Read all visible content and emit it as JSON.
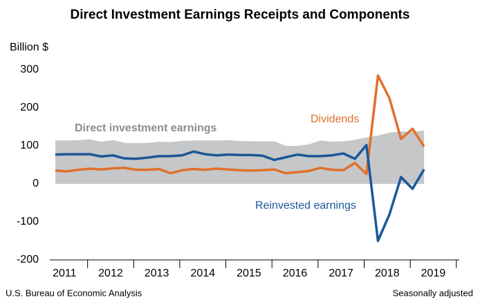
{
  "chart_data": {
    "type": "line",
    "title": "Direct Investment Earnings Receipts and Components",
    "y_label": "Billion $",
    "source": "U.S. Bureau of Economic Analysis",
    "note": "Seasonally adjusted",
    "categories": [
      null,
      null,
      null,
      null,
      null,
      null,
      null,
      null,
      null,
      null,
      null,
      null,
      null,
      null,
      null,
      null,
      null,
      null,
      null,
      null,
      null,
      null,
      null,
      null,
      null,
      null,
      null,
      null,
      null,
      null,
      null,
      null,
      null
    ],
    "x_groups": [
      "2011",
      "2012",
      "2013",
      "2014",
      "2015",
      "2016",
      "2017",
      "2018",
      "2019"
    ],
    "ylim": [
      -200,
      300
    ],
    "yticks": [
      -200,
      -100,
      0,
      100,
      200,
      300
    ],
    "grid": false,
    "series": [
      {
        "name": "Direct investment earnings",
        "kind": "area",
        "color": "#c5c7c9",
        "label_color": "#8c8c8c",
        "values": [
          114,
          114,
          115,
          117,
          111,
          115,
          108,
          107,
          108,
          111,
          110,
          113,
          114,
          114,
          114,
          115,
          113,
          112,
          112,
          112,
          100,
          100,
          104,
          114,
          111,
          112,
          116,
          122,
          127,
          135,
          138,
          137,
          140
        ]
      },
      {
        "name": "Dividends",
        "kind": "line",
        "color": "#e0702a",
        "values": [
          35,
          33,
          37,
          40,
          38,
          41,
          42,
          37,
          37,
          39,
          28,
          36,
          39,
          37,
          40,
          38,
          36,
          35,
          36,
          38,
          28,
          31,
          34,
          42,
          37,
          36,
          55,
          26,
          285,
          225,
          118,
          145,
          98
        ]
      },
      {
        "name": "Reinvested earnings",
        "kind": "line",
        "color": "#1a5799",
        "values": [
          77,
          78,
          78,
          78,
          72,
          75,
          67,
          66,
          69,
          73,
          73,
          75,
          85,
          78,
          75,
          77,
          76,
          76,
          74,
          63,
          70,
          77,
          73,
          73,
          75,
          80,
          66,
          102,
          -150,
          -80,
          18,
          -13,
          38
        ]
      }
    ]
  }
}
